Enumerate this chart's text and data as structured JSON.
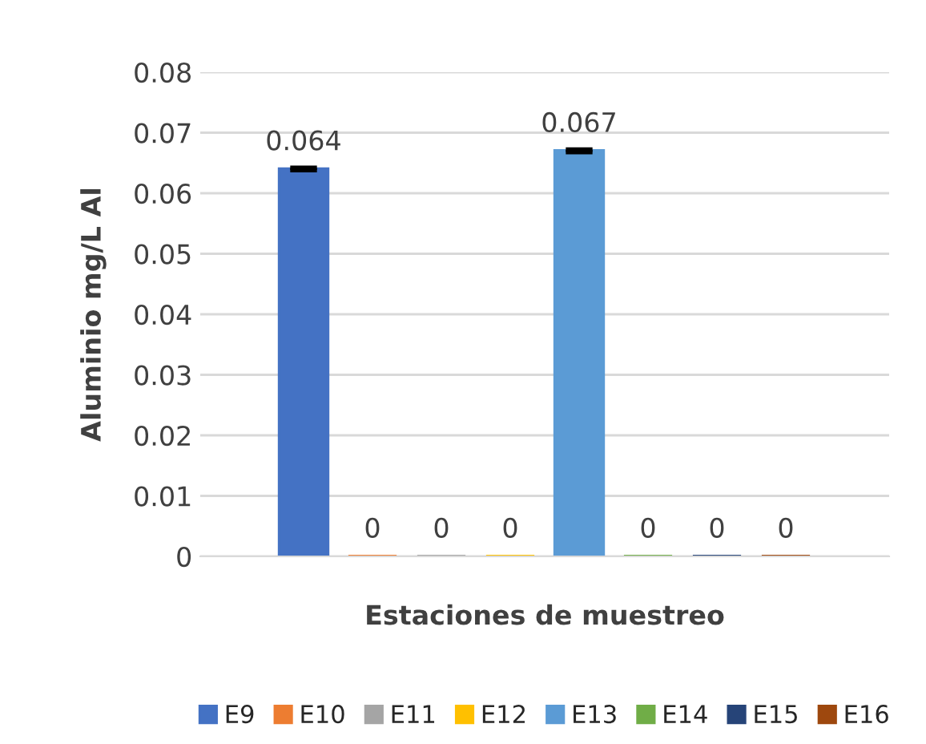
{
  "chart_data": {
    "type": "bar",
    "xlabel": "Estaciones de muestreo",
    "ylabel": "Aluminio mg/L Al",
    "categories": [
      null
    ],
    "series": [
      {
        "name": "E9",
        "color": "#4472c4",
        "values": [
          0.064
        ],
        "errors": [
          0.0002
        ]
      },
      {
        "name": "E10",
        "color": "#ed7d31",
        "values": [
          0
        ]
      },
      {
        "name": "E11",
        "color": "#a5a5a5",
        "values": [
          0
        ]
      },
      {
        "name": "E12",
        "color": "#ffc000",
        "values": [
          0
        ]
      },
      {
        "name": "E13",
        "color": "#5b9bd5",
        "values": [
          0.067
        ],
        "errors": [
          0.0002
        ]
      },
      {
        "name": "E14",
        "color": "#70ad47",
        "values": [
          0
        ]
      },
      {
        "name": "E15",
        "color": "#264478",
        "values": [
          0
        ]
      },
      {
        "name": "E16",
        "color": "#9e480e",
        "values": [
          0
        ]
      }
    ],
    "ylim": [
      0,
      0.08
    ],
    "yticks": [
      0,
      0.01,
      0.02,
      0.03,
      0.04,
      0.05,
      0.06,
      0.07,
      0.08
    ],
    "grid": "y",
    "legend": "bottom",
    "data_labels": true
  }
}
